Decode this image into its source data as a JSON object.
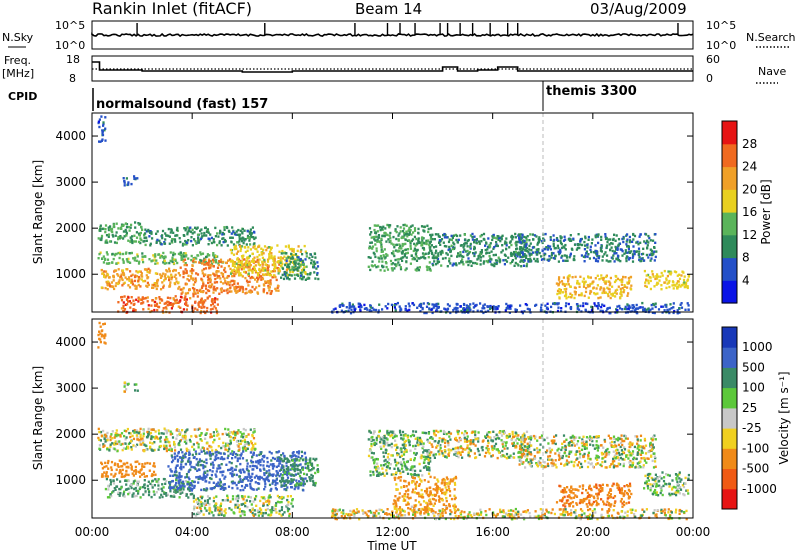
{
  "header": {
    "station": "Rankin Inlet (fitACF)",
    "beam": "Beam 14",
    "date": "03/Aug/2009"
  },
  "nsky_panel": {
    "left_label": "N.Sky",
    "left_ticks": [
      "10^5",
      "10^0"
    ],
    "right_label": "N.Search",
    "right_ticks": [
      "10^5",
      "10^0"
    ]
  },
  "freq_panel": {
    "left_label_1": "Freq.",
    "left_label_2": "[MHz]",
    "left_ticks": [
      "18",
      "8"
    ],
    "right_label": "Nave",
    "right_ticks": [
      "60",
      "0"
    ]
  },
  "cpid_panel": {
    "label": "CPID",
    "programs": [
      {
        "name": "normalsound (fast) 157",
        "start_hour": 0
      },
      {
        "name": "themis 3300",
        "start_hour": 18
      }
    ]
  },
  "axes": {
    "time_ticks": [
      "00:00",
      "04:00",
      "08:00",
      "12:00",
      "16:00",
      "20:00",
      "00:00"
    ],
    "xlabel": "Time UT",
    "range_ticks": [
      "1000",
      "2000",
      "3000",
      "4000"
    ],
    "ylabel": "Slant Range [km]"
  },
  "power_colorbar": {
    "label": "Power [dB]",
    "ticks": [
      "4",
      "8",
      "12",
      "16",
      "20",
      "24",
      "28"
    ],
    "colors": [
      "#0a14e6",
      "#2450c8",
      "#2e8a5a",
      "#5ab45a",
      "#e8d020",
      "#f0a028",
      "#f06a20",
      "#e61414"
    ]
  },
  "velocity_colorbar": {
    "label": "Velocity [m s⁻¹]",
    "ticks": [
      "1000",
      "500",
      "100",
      "25",
      "-25",
      "-100",
      "-500",
      "-1000"
    ],
    "colors": [
      "#1838b8",
      "#3c64c8",
      "#3a8a66",
      "#5cc83a",
      "#c8c8c8",
      "#f0d020",
      "#f08a18",
      "#f05a14",
      "#e61414"
    ]
  },
  "chart_data": [
    {
      "type": "heatmap",
      "title": "Power",
      "xlabel": "Time UT",
      "ylabel": "Slant Range [km]",
      "xlim": [
        0,
        24
      ],
      "ylim": [
        180,
        4500
      ],
      "colorbar_label": "Power [dB]",
      "zlim": [
        0,
        30
      ],
      "regions": [
        {
          "t0": 0.2,
          "t1": 2.0,
          "r0": 1700,
          "r1": 2150,
          "v": 12
        },
        {
          "t0": 2.0,
          "t1": 6.5,
          "r0": 1650,
          "r1": 2050,
          "v": 10
        },
        {
          "t0": 0.2,
          "t1": 5.2,
          "r0": 1250,
          "r1": 1500,
          "v": 14
        },
        {
          "t0": 0.3,
          "t1": 3.5,
          "r0": 700,
          "r1": 1150,
          "v": 22
        },
        {
          "t0": 3.5,
          "t1": 7.5,
          "r0": 600,
          "r1": 1350,
          "v": 24
        },
        {
          "t0": 5.5,
          "t1": 8.5,
          "r0": 1000,
          "r1": 1650,
          "v": 18
        },
        {
          "t0": 1.0,
          "t1": 5.0,
          "r0": 180,
          "r1": 550,
          "v": 26
        },
        {
          "t0": 7.5,
          "t1": 9.0,
          "r0": 900,
          "r1": 1500,
          "v": 10
        },
        {
          "t0": 11.0,
          "t1": 13.5,
          "r0": 1100,
          "r1": 2100,
          "v": 12
        },
        {
          "t0": 13.5,
          "t1": 17.5,
          "r0": 1200,
          "r1": 1900,
          "v": 10
        },
        {
          "t0": 17.0,
          "t1": 22.5,
          "r0": 1300,
          "r1": 1900,
          "v": 9
        },
        {
          "t0": 18.5,
          "t1": 21.5,
          "r0": 500,
          "r1": 1000,
          "v": 20
        },
        {
          "t0": 22.0,
          "t1": 23.8,
          "r0": 700,
          "r1": 1100,
          "v": 18
        },
        {
          "t0": 9.5,
          "t1": 23.8,
          "r0": 180,
          "r1": 400,
          "v": 6
        },
        {
          "t0": 0.2,
          "t1": 0.5,
          "r0": 3900,
          "r1": 4450,
          "v": 6
        },
        {
          "t0": 1.2,
          "t1": 1.8,
          "r0": 2950,
          "r1": 3150,
          "v": 7
        }
      ]
    },
    {
      "type": "heatmap",
      "title": "Velocity",
      "xlabel": "Time UT",
      "ylabel": "Slant Range [km]",
      "xlim": [
        0,
        24
      ],
      "ylim": [
        180,
        4500
      ],
      "colorbar_label": "Velocity [m s⁻¹]",
      "zlim": [
        -1000,
        1000
      ],
      "regions": [
        {
          "t0": 0.2,
          "t1": 6.5,
          "r0": 1650,
          "r1": 2150,
          "v": 0
        },
        {
          "t0": 0.3,
          "t1": 2.5,
          "r0": 1100,
          "r1": 1450,
          "v": -300
        },
        {
          "t0": 0.5,
          "t1": 4.0,
          "r0": 650,
          "r1": 1050,
          "v": 150
        },
        {
          "t0": 3.0,
          "t1": 8.5,
          "r0": 800,
          "r1": 1650,
          "v": 600
        },
        {
          "t0": 7.5,
          "t1": 9.0,
          "r0": 900,
          "r1": 1500,
          "v": 200
        },
        {
          "t0": 4.0,
          "t1": 8.0,
          "r0": 250,
          "r1": 700,
          "v": 50
        },
        {
          "t0": 11.0,
          "t1": 13.5,
          "r0": 1100,
          "r1": 2100,
          "v": 80
        },
        {
          "t0": 13.5,
          "t1": 17.5,
          "r0": 1500,
          "r1": 2100,
          "v": 0
        },
        {
          "t0": 17.0,
          "t1": 22.5,
          "r0": 1300,
          "r1": 2000,
          "v": 0
        },
        {
          "t0": 18.5,
          "t1": 21.5,
          "r0": 450,
          "r1": 950,
          "v": -400
        },
        {
          "t0": 22.0,
          "t1": 23.8,
          "r0": 700,
          "r1": 1200,
          "v": 100
        },
        {
          "t0": 12.0,
          "t1": 14.5,
          "r0": 300,
          "r1": 1100,
          "v": -200
        },
        {
          "t0": 9.5,
          "t1": 23.8,
          "r0": 180,
          "r1": 400,
          "v": -50
        },
        {
          "t0": 0.2,
          "t1": 0.5,
          "r0": 3900,
          "r1": 4450,
          "v": -300
        },
        {
          "t0": 1.2,
          "t1": 1.8,
          "r0": 2950,
          "r1": 3150,
          "v": 0
        }
      ]
    }
  ]
}
